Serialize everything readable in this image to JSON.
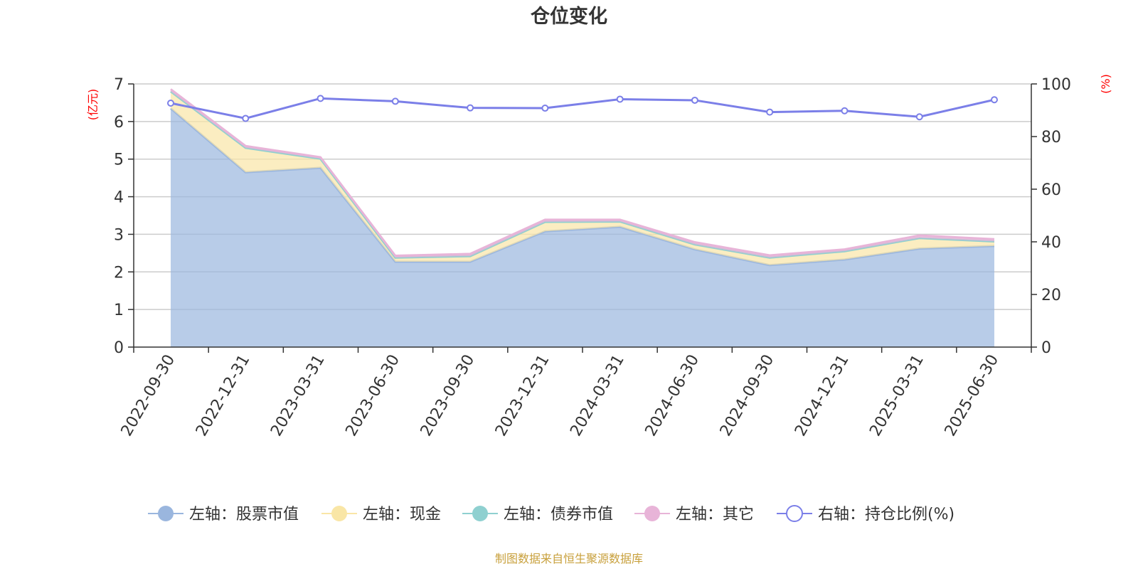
{
  "chart_data": {
    "type": "area",
    "title": "仓位变化",
    "left_unit": "(亿元)",
    "right_unit": "(%)",
    "categories": [
      "2022-09-30",
      "2022-12-31",
      "2023-03-31",
      "2023-06-30",
      "2023-09-30",
      "2023-12-31",
      "2024-03-31",
      "2024-06-30",
      "2024-09-30",
      "2024-12-31",
      "2025-03-31",
      "2025-06-30"
    ],
    "left_ylim": [
      0,
      7
    ],
    "left_ticks": [
      "0",
      "1",
      "2",
      "3",
      "4",
      "5",
      "6",
      "7"
    ],
    "right_ylim": [
      0,
      100
    ],
    "right_ticks": [
      "0",
      "20",
      "40",
      "60",
      "80",
      "100"
    ],
    "grid": true,
    "legend_position": "bottom",
    "series": [
      {
        "name": "左轴：股票市值",
        "axis": "left",
        "stack": true,
        "color": "#9ab6de",
        "values": [
          6.35,
          4.65,
          4.77,
          2.27,
          2.27,
          3.08,
          3.2,
          2.6,
          2.18,
          2.33,
          2.62,
          2.69
        ]
      },
      {
        "name": "左轴：现金",
        "axis": "left",
        "stack": true,
        "color": "#f9e6a6",
        "values": [
          0.45,
          0.65,
          0.24,
          0.11,
          0.15,
          0.25,
          0.14,
          0.13,
          0.2,
          0.22,
          0.28,
          0.12
        ]
      },
      {
        "name": "左轴：债券市值",
        "axis": "left",
        "stack": true,
        "color": "#8fd0d0",
        "values": [
          0,
          0,
          0,
          0,
          0,
          0,
          0,
          0,
          0,
          0,
          0,
          0
        ]
      },
      {
        "name": "左轴：其它",
        "axis": "left",
        "stack": true,
        "color": "#e8b4d8",
        "values": [
          0.06,
          0.05,
          0.04,
          0.05,
          0.06,
          0.06,
          0.05,
          0.06,
          0.06,
          0.05,
          0.07,
          0.06
        ]
      },
      {
        "name": "右轴：持仓比例(%)",
        "axis": "right",
        "stack": false,
        "color": "#7b7fe8",
        "values": [
          92.7,
          86.9,
          94.5,
          93.4,
          90.9,
          90.8,
          94.2,
          93.8,
          89.3,
          89.8,
          87.5,
          94.0
        ]
      }
    ]
  },
  "source_text": "制图数据来自恒生聚源数据库"
}
